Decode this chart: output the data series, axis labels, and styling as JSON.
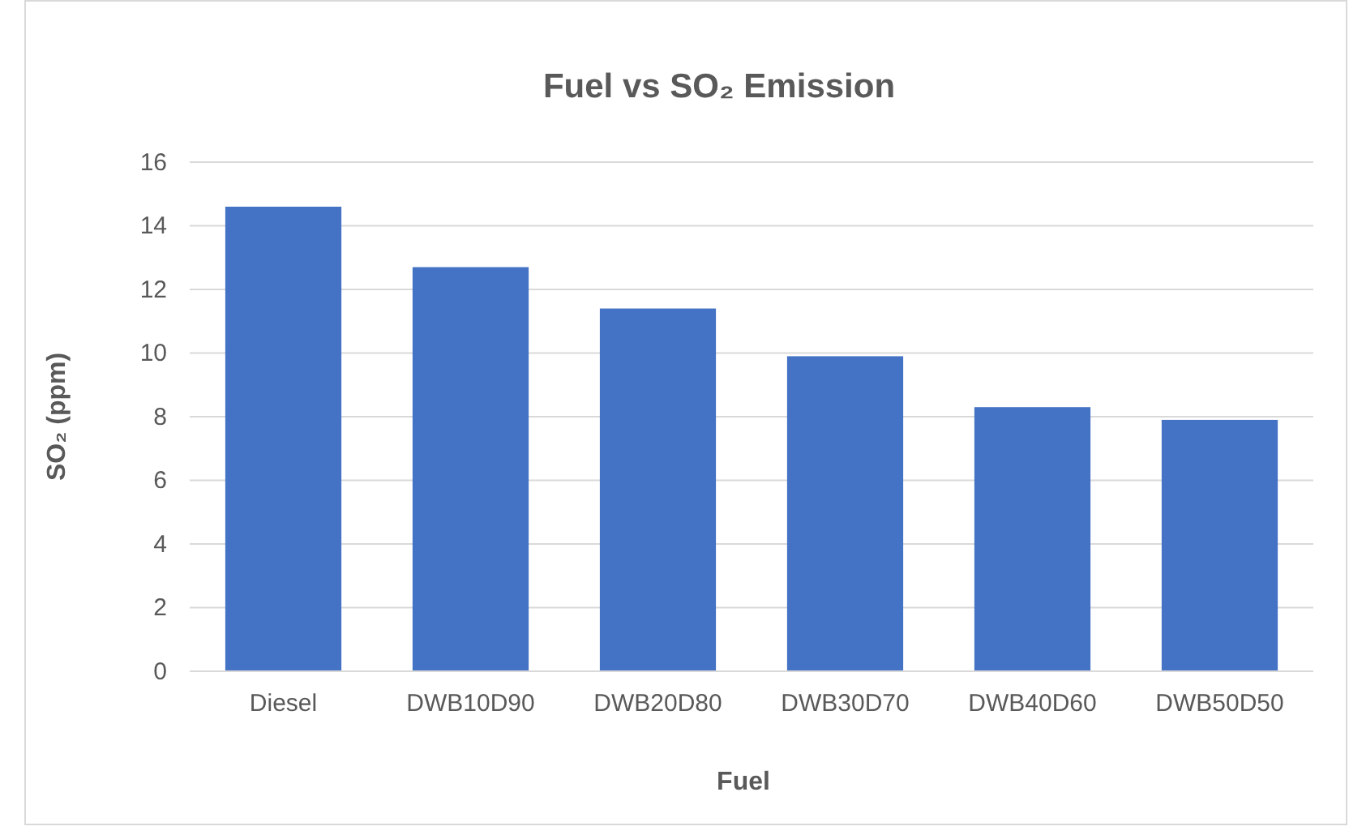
{
  "chart_data": {
    "type": "bar",
    "title": "Fuel vs SO₂ Emission",
    "xlabel": "Fuel",
    "ylabel": "SO₂ (ppm)",
    "categories": [
      "Diesel",
      "DWB10D90",
      "DWB20D80",
      "DWB30D70",
      "DWB40D60",
      "DWB50D50"
    ],
    "values": [
      14.6,
      12.7,
      11.4,
      9.9,
      8.3,
      7.9
    ],
    "color": "#4472c4",
    "ylim": [
      0,
      16
    ],
    "yticks": [
      0,
      2,
      4,
      6,
      8,
      10,
      12,
      14,
      16
    ],
    "grid": "y"
  }
}
